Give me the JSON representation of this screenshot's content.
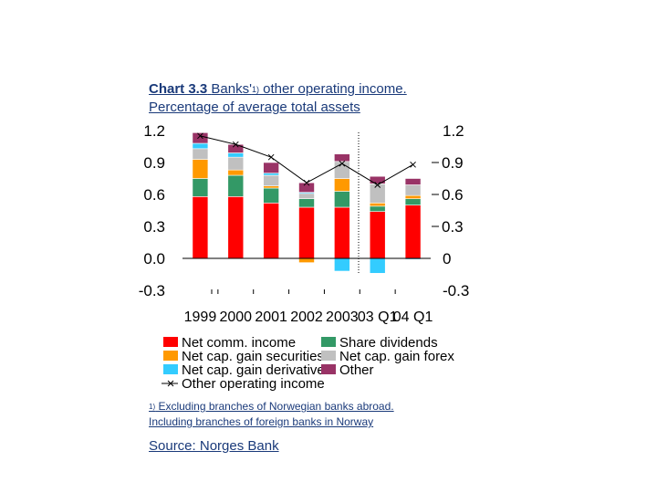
{
  "title": {
    "prefix": "Chart 3.3",
    "line1_b": "Banks'",
    "sup": "1)",
    "line1_c": " other operating income.",
    "line2": "Percentage of average total assets"
  },
  "footnote": {
    "marker": "1)",
    "line1": " Excluding branches of Norwegian banks abroad.",
    "line2": "Including branches of foreign banks in Norway"
  },
  "source": "Source: Norges Bank",
  "chart_data": {
    "type": "bar",
    "stacked": true,
    "categories": [
      "1999",
      "2000",
      "2001",
      "2002",
      "2003",
      "03 Q1",
      "04 Q1"
    ],
    "ylim": [
      -0.3,
      1.2
    ],
    "left_ticks": [
      "1.2",
      "0.9",
      "0.6",
      "0.3",
      "0.0",
      "-0.3"
    ],
    "right_ticks": [
      "1.2",
      "0.9",
      "0.6",
      "0.3",
      "0",
      "-0.3"
    ],
    "tick_values": [
      1.2,
      0.9,
      0.6,
      0.3,
      0.0,
      -0.3
    ],
    "colors": {
      "net_comm": "#ff0000",
      "share_div": "#339966",
      "sec": "#ff9900",
      "forex": "#c0c0c0",
      "deriv": "#33ccff",
      "other": "#993366",
      "line": "#000000"
    },
    "series": [
      {
        "name": "Net comm. income",
        "key": "net_comm",
        "values": [
          0.58,
          0.58,
          0.52,
          0.48,
          0.48,
          0.44,
          0.5
        ]
      },
      {
        "name": "Share dividends",
        "key": "share_div",
        "values": [
          0.17,
          0.2,
          0.14,
          0.08,
          0.15,
          0.05,
          0.06
        ]
      },
      {
        "name": "Net cap. gain securities",
        "key": "sec",
        "values": [
          0.18,
          0.05,
          0.02,
          -0.04,
          0.12,
          0.03,
          0.03
        ]
      },
      {
        "name": "Net cap. gain forex",
        "key": "forex",
        "values": [
          0.1,
          0.12,
          0.1,
          0.05,
          0.16,
          0.18,
          0.1
        ]
      },
      {
        "name": "Net cap. gain derivatives",
        "key": "deriv",
        "values": [
          0.05,
          0.04,
          0.02,
          0.01,
          -0.12,
          -0.14,
          -0.01
        ]
      },
      {
        "name": "Other",
        "key": "other",
        "values": [
          0.1,
          0.08,
          0.1,
          0.09,
          0.07,
          0.07,
          0.06
        ]
      }
    ],
    "line_series": {
      "name": "Other operating income",
      "values": [
        1.15,
        1.07,
        0.95,
        0.71,
        0.89,
        0.69,
        0.88
      ]
    },
    "legend": {
      "left": [
        "Net comm. income",
        "Net cap. gain securities",
        "Net cap. gain derivatives",
        "Other operating income"
      ],
      "right": [
        "Share dividends",
        "Net cap. gain forex",
        "Other"
      ]
    }
  }
}
